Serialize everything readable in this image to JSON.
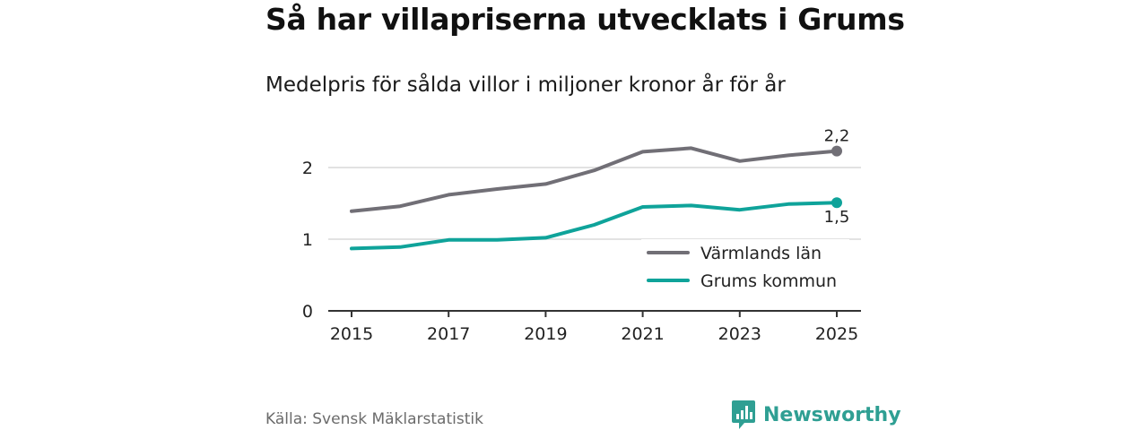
{
  "title": "Så har villapriserna utvecklats i Grums",
  "subtitle": "Medelpris för sålda villor i miljoner kronor år för år",
  "source": "Källa: Svensk Mäklarstatistik",
  "brand": {
    "name": "Newsworthy",
    "icon": "bar-chart-logo-icon"
  },
  "colors": {
    "varmland": "#716f76",
    "grums": "#0fa39a",
    "grid": "#d9d9d9",
    "axis": "#333333",
    "brand": "#2f9f93"
  },
  "chart_data": {
    "type": "line",
    "title": "Så har villapriserna utvecklats i Grums",
    "subtitle": "Medelpris för sålda villor i miljoner kronor år för år",
    "xlabel": "",
    "ylabel": "",
    "x": [
      2015,
      2016,
      2017,
      2018,
      2019,
      2020,
      2021,
      2022,
      2023,
      2024,
      2025
    ],
    "xticks": [
      2015,
      2017,
      2019,
      2021,
      2023,
      2025
    ],
    "yticks": [
      0,
      1,
      2
    ],
    "yticklabels": [
      "0",
      "1",
      "2"
    ],
    "ylim": [
      0,
      2.5
    ],
    "grid": true,
    "legend_position": "bottom-right",
    "series": [
      {
        "name": "Värmlands län",
        "color": "#716f76",
        "values": [
          1.39,
          1.46,
          1.62,
          1.7,
          1.77,
          1.96,
          2.22,
          2.27,
          2.09,
          2.17,
          2.23
        ],
        "end_label": "2,2"
      },
      {
        "name": "Grums kommun",
        "color": "#0fa39a",
        "values": [
          0.87,
          0.89,
          0.99,
          0.99,
          1.02,
          1.2,
          1.45,
          1.47,
          1.41,
          1.49,
          1.51
        ],
        "end_label": "1,5"
      }
    ]
  }
}
